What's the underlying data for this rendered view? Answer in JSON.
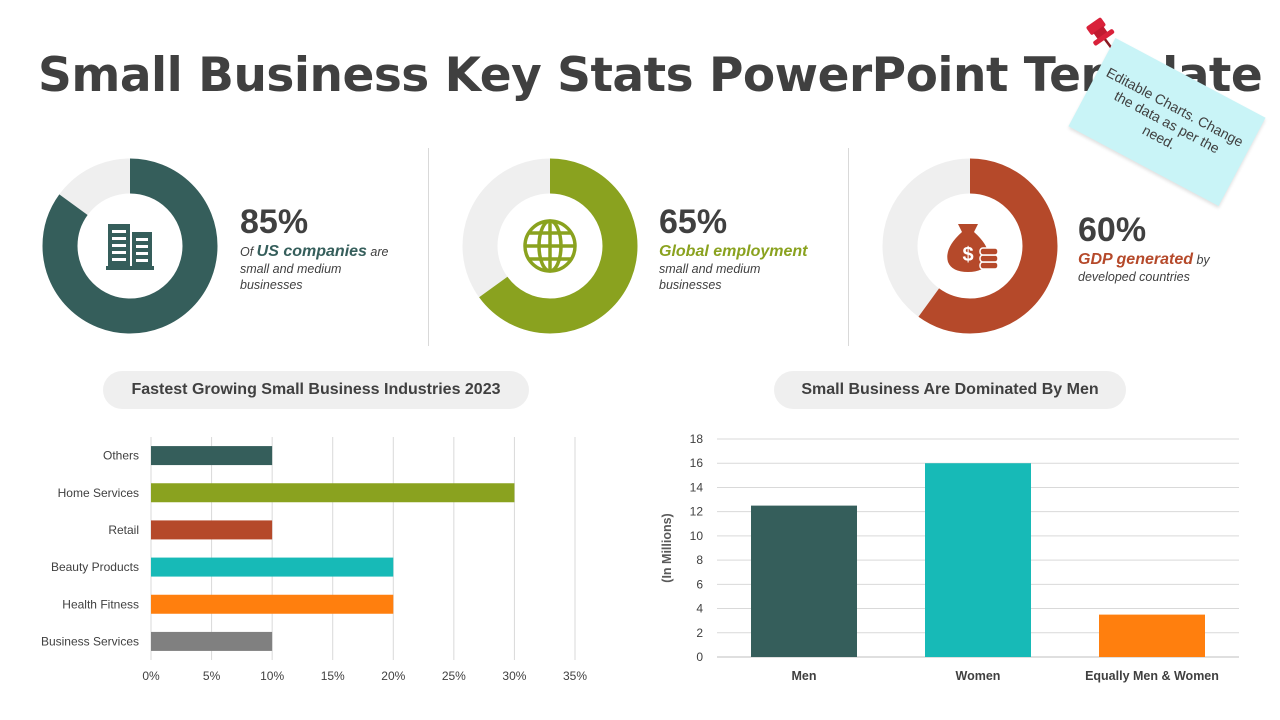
{
  "title": "Small Business Key Stats PowerPoint Template",
  "note": {
    "text": "Editable Charts. Change the data as per the need."
  },
  "stats": [
    {
      "percent": "85%",
      "value": 85,
      "prefix": "Of ",
      "highlight": "US companies",
      "suffix": " are",
      "line2": "small and medium",
      "line3": "businesses",
      "color": "#355e5b",
      "icon": "building-icon"
    },
    {
      "percent": "65%",
      "value": 65,
      "prefix": "",
      "highlight": "Global employment",
      "suffix": "",
      "line2": "small and medium",
      "line3": "businesses",
      "color": "#8aa21f",
      "icon": "globe-icon"
    },
    {
      "percent": "60%",
      "value": 60,
      "prefix": "",
      "highlight": "GDP generated",
      "suffix": " by",
      "line2": "developed countries",
      "line3": "",
      "color": "#b5492a",
      "icon": "money-bag-icon"
    }
  ],
  "chart_data": [
    {
      "type": "bar",
      "orientation": "horizontal",
      "title": "Fastest Growing  Small Business Industries 2023",
      "categories": [
        "Others",
        "Home Services",
        "Retail",
        "Beauty Products",
        "Health Fitness",
        "Business Services"
      ],
      "values": [
        10,
        30,
        10,
        20,
        20,
        10
      ],
      "colors": [
        "#355e5b",
        "#8aa21f",
        "#b5492a",
        "#17bab7",
        "#ff7f0e",
        "#808080"
      ],
      "xlim": [
        0,
        35
      ],
      "xticks": [
        "0%",
        "5%",
        "10%",
        "15%",
        "20%",
        "25%",
        "30%",
        "35%"
      ],
      "grid": "vertical"
    },
    {
      "type": "bar",
      "title": "Small Business Are Dominated By Men",
      "categories": [
        "Men",
        "Women",
        "Equally Men & Women"
      ],
      "values": [
        12.5,
        16,
        3.5
      ],
      "colors": [
        "#355e5b",
        "#17bab7",
        "#ff7f0e"
      ],
      "ylabel": "(In Millions)",
      "ylim": [
        0,
        18
      ],
      "yticks": [
        "0",
        "2",
        "4",
        "6",
        "8",
        "10",
        "12",
        "14",
        "16",
        "18"
      ],
      "grid": "horizontal"
    }
  ]
}
